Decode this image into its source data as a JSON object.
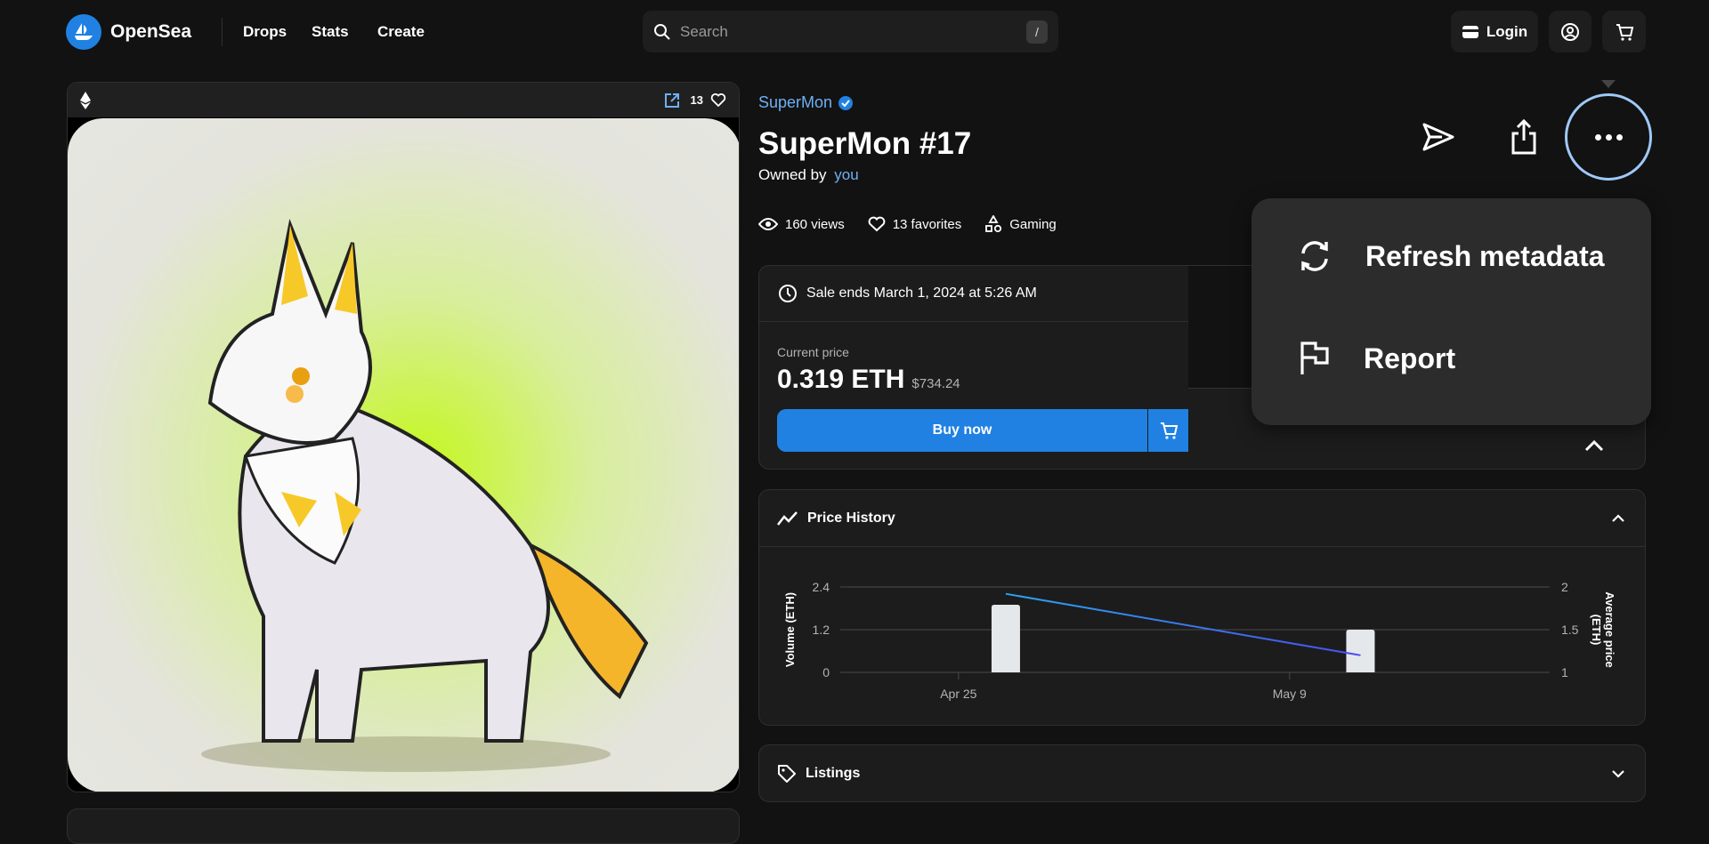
{
  "header": {
    "brand": "OpenSea",
    "nav": [
      {
        "label": "Drops"
      },
      {
        "label": "Stats"
      },
      {
        "label": "Create"
      }
    ],
    "search": {
      "placeholder": "Search",
      "shortcut": "/"
    },
    "login_label": "Login"
  },
  "media": {
    "favorites_count": "13"
  },
  "item": {
    "collection": "SuperMon",
    "title": "SuperMon #17",
    "owned_by_prefix": "Owned by",
    "owner": "you",
    "views": "160 views",
    "favorites": "13 favorites",
    "category": "Gaming"
  },
  "menu": {
    "items": [
      {
        "label": "Refresh metadata",
        "icon": "refresh-icon"
      },
      {
        "label": "Report",
        "icon": "flag-icon"
      }
    ]
  },
  "sale": {
    "ends": "Sale ends March 1, 2024 at 5:26 AM",
    "current_price_label": "Current price",
    "price": "0.319 ETH",
    "price_usd": "$734.24",
    "buy_label": "Buy now"
  },
  "price_history": {
    "title": "Price History"
  },
  "listings": {
    "title": "Listings"
  },
  "colors": {
    "accent": "#2081e2",
    "background": "#121212",
    "card": "#1c1c1c",
    "link": "#6fb0f5"
  },
  "chart_data": {
    "type": "bar+line",
    "xlabel": "",
    "ylabel": "Volume (ETH)",
    "y2label": "Average price (ETH)",
    "x_ticks": [
      "Apr 25",
      "May 9"
    ],
    "xlim": [
      "Apr 20",
      "May 20"
    ],
    "ylim": [
      0,
      2.4
    ],
    "y_ticks": [
      "0",
      "1.2",
      "2.4"
    ],
    "y2lim": [
      1,
      2
    ],
    "y2_ticks": [
      "1",
      "1.5",
      "2"
    ],
    "grid": true,
    "series": [
      {
        "kind": "bar",
        "axis": "left",
        "x": [
          "Apr 27",
          "May 12"
        ],
        "values": [
          1.9,
          1.2
        ]
      },
      {
        "kind": "line",
        "axis": "right",
        "x": [
          "Apr 27",
          "May 12"
        ],
        "values": [
          1.92,
          1.2
        ]
      }
    ]
  }
}
